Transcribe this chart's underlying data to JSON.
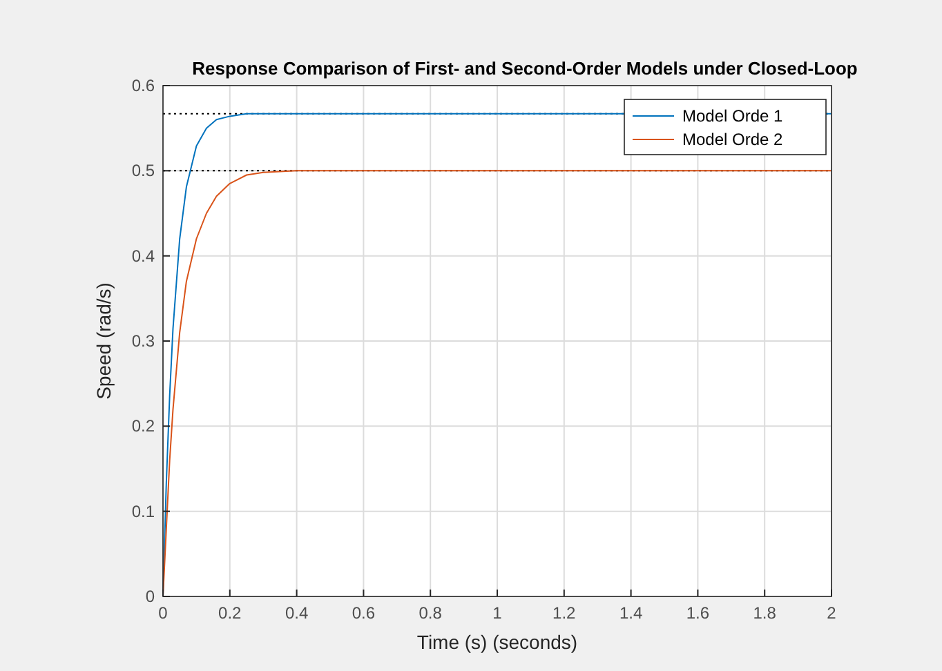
{
  "chart_data": {
    "type": "line",
    "title": "Response Comparison of First- and Second-Order Models under Closed-Loop",
    "xlabel": "Time (s) (seconds)",
    "ylabel": "Speed (rad/s)",
    "xlim": [
      0,
      2
    ],
    "xticks": [
      0,
      0.2,
      0.4,
      0.6,
      0.8,
      1,
      1.2,
      1.4,
      1.6,
      1.8,
      2
    ],
    "ylim": [
      0,
      0.6
    ],
    "yticks": [
      0,
      0.1,
      0.2,
      0.3,
      0.4,
      0.5,
      0.6
    ],
    "grid": true,
    "legend": "top right",
    "series": [
      {
        "name": "Model Orde 1",
        "color": "#0072bd",
        "x": [
          0,
          0.01,
          0.02,
          0.03,
          0.05,
          0.07,
          0.1,
          0.13,
          0.16,
          0.2,
          0.25,
          0.3,
          0.5,
          1,
          2
        ],
        "values": [
          0,
          0.134,
          0.236,
          0.315,
          0.42,
          0.481,
          0.529,
          0.55,
          0.56,
          0.564,
          0.567,
          0.567,
          0.567,
          0.567,
          0.567
        ]
      },
      {
        "name": "Model Orde 2",
        "color": "#d95319",
        "x": [
          0,
          0.01,
          0.02,
          0.03,
          0.05,
          0.07,
          0.1,
          0.13,
          0.16,
          0.2,
          0.25,
          0.3,
          0.4,
          1,
          2
        ],
        "values": [
          0,
          0.08,
          0.16,
          0.22,
          0.31,
          0.37,
          0.42,
          0.45,
          0.47,
          0.485,
          0.495,
          0.498,
          0.5,
          0.5,
          0.5
        ]
      }
    ],
    "ref_lines": [
      {
        "axis": "y",
        "value": 0.567,
        "line_style": "dotted",
        "color": "#000000"
      },
      {
        "axis": "y",
        "value": 0.5,
        "line_style": "dotted",
        "color": "#000000"
      }
    ]
  }
}
